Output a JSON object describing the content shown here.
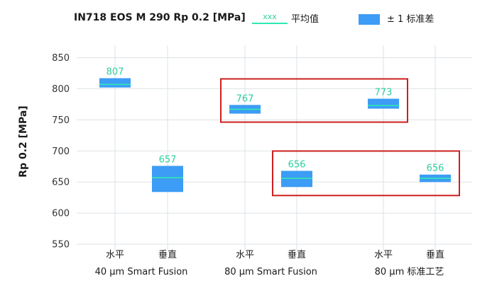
{
  "chart_data": {
    "type": "box",
    "title": "IN718 EOS M 290 Rp 0.2 [MPa]",
    "ylabel": "Rp 0.2 [MPa]",
    "ylim": [
      545,
      865
    ],
    "yticks": [
      550,
      600,
      650,
      700,
      750,
      800,
      850
    ],
    "grid": true,
    "legend": {
      "position": "top",
      "items": [
        {
          "marker": "line",
          "sample_text": "xxx",
          "label": "平均值"
        },
        {
          "marker": "box",
          "label": "± 1 标准差"
        }
      ]
    },
    "colors": {
      "box": "#3d9cf5",
      "mean_line": "#2ee8b4",
      "value_label": "#2ecf9e",
      "highlight": "#cc1f1f",
      "grid": "#dde2e7"
    },
    "groups": [
      "40 µm Smart Fusion",
      "80 µm Smart Fusion",
      "80 µm 标准工艺"
    ],
    "categories": [
      "水平",
      "垂直",
      "水平",
      "垂直",
      "水平",
      "垂直"
    ],
    "points": [
      {
        "group": 0,
        "category": "水平",
        "mean": 807,
        "lower": 802,
        "upper": 817,
        "mean_label": "807"
      },
      {
        "group": 0,
        "category": "垂直",
        "mean": 657,
        "lower": 634,
        "upper": 676,
        "mean_label": "657"
      },
      {
        "group": 1,
        "category": "水平",
        "mean": 767,
        "lower": 760,
        "upper": 774,
        "mean_label": "767"
      },
      {
        "group": 1,
        "category": "垂直",
        "mean": 656,
        "lower": 642,
        "upper": 668,
        "mean_label": "656"
      },
      {
        "group": 2,
        "category": "水平",
        "mean": 773,
        "lower": 768,
        "upper": 784,
        "mean_label": "773"
      },
      {
        "group": 2,
        "category": "垂直",
        "mean": 656,
        "lower": 650,
        "upper": 662,
        "mean_label": "656"
      }
    ],
    "highlight_boxes": [
      {
        "points": [
          2,
          4
        ]
      },
      {
        "points": [
          3,
          5
        ]
      }
    ]
  }
}
